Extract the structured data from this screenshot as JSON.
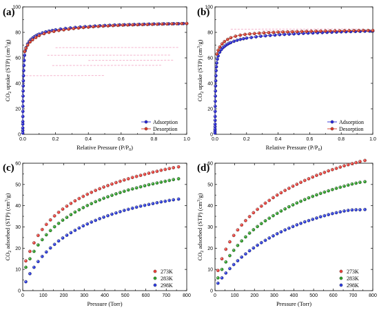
{
  "colors": {
    "adsorption": "#2727d6",
    "desorption": "#d43a2a",
    "t273": "#e8403a",
    "t283": "#2fa02a",
    "t298": "#2b3bdc",
    "pink_band": "#f4b3cc"
  },
  "chart_data": [
    {
      "panel": "(a)",
      "type": "scatter",
      "xlabel": "Relative Pressure (P/P0)",
      "ylabel": "CO2 uptake (STP) (cm3/g)",
      "xlim": [
        0.0,
        1.0
      ],
      "ylim": [
        0,
        100
      ],
      "xticks": [
        0.0,
        0.2,
        0.4,
        0.6,
        0.8,
        1.0
      ],
      "yticks": [
        0,
        20,
        40,
        60,
        80,
        100
      ],
      "legend_position": "bottom-right",
      "series": [
        {
          "name": "Adsorption",
          "color": "#2727d6",
          "x": [
            0.0001,
            0.0002,
            0.0003,
            0.0004,
            0.0005,
            0.0007,
            0.0009,
            0.0012,
            0.0015,
            0.0019,
            0.0024,
            0.003,
            0.0037,
            0.0046,
            0.0056,
            0.007,
            0.0087,
            0.011,
            0.015,
            0.02,
            0.03,
            0.04,
            0.05,
            0.06,
            0.07,
            0.08,
            0.09,
            0.1,
            0.12,
            0.14,
            0.16,
            0.18,
            0.2,
            0.23,
            0.26,
            0.29,
            0.32,
            0.35,
            0.38,
            0.41,
            0.44,
            0.47,
            0.5,
            0.53,
            0.56,
            0.59,
            0.62,
            0.65,
            0.68,
            0.71,
            0.74,
            0.77,
            0.8,
            0.83,
            0.86,
            0.89,
            0.92,
            0.95,
            0.98,
            1.0
          ],
          "y": [
            1,
            3,
            5,
            8,
            10,
            14,
            18,
            22,
            26,
            30,
            34,
            38,
            42,
            46,
            50,
            54,
            58,
            62,
            65.5,
            68,
            71,
            73,
            74.5,
            75.5,
            76.5,
            77.3,
            78,
            78.6,
            79.6,
            80.4,
            81,
            81.5,
            82,
            82.6,
            83.1,
            83.5,
            83.9,
            84.2,
            84.5,
            84.7,
            85,
            85.2,
            85.4,
            85.6,
            85.8,
            85.9,
            86,
            86.1,
            86.2,
            86.3,
            86.4,
            86.5,
            86.6,
            86.6,
            86.7,
            86.7,
            86.8,
            86.8,
            86.9,
            86.9
          ]
        },
        {
          "name": "Desorption",
          "color": "#d43a2a",
          "x": [
            1.0,
            0.97,
            0.94,
            0.91,
            0.88,
            0.85,
            0.82,
            0.79,
            0.76,
            0.73,
            0.7,
            0.67,
            0.64,
            0.61,
            0.58,
            0.55,
            0.52,
            0.49,
            0.46,
            0.43,
            0.4,
            0.37,
            0.34,
            0.31,
            0.28,
            0.25,
            0.22,
            0.19,
            0.16,
            0.13,
            0.1,
            0.08,
            0.06,
            0.045,
            0.03,
            0.02,
            0.012
          ],
          "y": [
            87,
            86.9,
            86.8,
            86.7,
            86.6,
            86.5,
            86.4,
            86.3,
            86.2,
            86.1,
            86,
            85.9,
            85.8,
            85.7,
            85.5,
            85.3,
            85.1,
            84.9,
            84.7,
            84.4,
            84.1,
            83.8,
            83.4,
            83,
            82.5,
            82,
            81.5,
            80.8,
            80,
            79,
            77.5,
            76,
            74.2,
            72.5,
            70,
            67.5,
            65
          ]
        }
      ]
    },
    {
      "panel": "(b)",
      "type": "scatter",
      "xlabel": "Relative Pressure (P/P0)",
      "ylabel": "CO2 uptake (STP) (cm3/g)",
      "xlim": [
        0.0,
        1.0
      ],
      "ylim": [
        0,
        100
      ],
      "xticks": [
        0.0,
        0.2,
        0.4,
        0.6,
        0.8,
        1.0
      ],
      "yticks": [
        0,
        20,
        40,
        60,
        80,
        100
      ],
      "legend_position": "bottom-right",
      "series": [
        {
          "name": "Adsorption",
          "color": "#2727d6",
          "x": [
            0.0001,
            0.0002,
            0.0003,
            0.0004,
            0.0005,
            0.0007,
            0.0009,
            0.0012,
            0.0015,
            0.0019,
            0.0024,
            0.003,
            0.0037,
            0.0046,
            0.0056,
            0.007,
            0.0087,
            0.011,
            0.015,
            0.02,
            0.03,
            0.04,
            0.05,
            0.06,
            0.07,
            0.08,
            0.09,
            0.1,
            0.12,
            0.14,
            0.16,
            0.18,
            0.2,
            0.23,
            0.26,
            0.29,
            0.32,
            0.35,
            0.38,
            0.41,
            0.44,
            0.47,
            0.5,
            0.53,
            0.56,
            0.59,
            0.62,
            0.65,
            0.68,
            0.71,
            0.74,
            0.77,
            0.8,
            0.83,
            0.86,
            0.89,
            0.92,
            0.95,
            0.98,
            1.0
          ],
          "y": [
            1,
            2.5,
            4,
            6,
            8,
            11,
            14,
            18,
            22,
            26,
            30,
            34,
            38,
            42,
            46,
            50,
            53,
            56,
            59,
            61.5,
            64.5,
            66.5,
            68,
            69,
            70,
            70.8,
            71.5,
            72,
            73,
            73.8,
            74.5,
            75,
            75.5,
            76,
            76.5,
            77,
            77.3,
            77.6,
            77.9,
            78.2,
            78.4,
            78.6,
            78.8,
            79,
            79.2,
            79.4,
            79.5,
            79.7,
            79.8,
            80,
            80.1,
            80.2,
            80.4,
            80.5,
            80.6,
            80.7,
            80.8,
            80.9,
            81,
            81
          ]
        },
        {
          "name": "Desorption",
          "color": "#d43a2a",
          "x": [
            1.0,
            0.97,
            0.94,
            0.91,
            0.88,
            0.85,
            0.82,
            0.79,
            0.76,
            0.73,
            0.7,
            0.67,
            0.64,
            0.61,
            0.58,
            0.55,
            0.52,
            0.49,
            0.46,
            0.43,
            0.4,
            0.37,
            0.34,
            0.31,
            0.28,
            0.25,
            0.22,
            0.19,
            0.16,
            0.13,
            0.1,
            0.08,
            0.06,
            0.045,
            0.03,
            0.02,
            0.012
          ],
          "y": [
            81.5,
            81.5,
            81.5,
            81.4,
            81.4,
            81.3,
            81.3,
            81.2,
            81.2,
            81.1,
            81.1,
            81,
            81,
            80.9,
            80.8,
            80.7,
            80.6,
            80.5,
            80.4,
            80.3,
            80.2,
            80,
            79.8,
            79.6,
            79.4,
            79.1,
            78.8,
            78.4,
            77.8,
            77,
            75.8,
            74.5,
            72.8,
            71,
            68.5,
            66,
            63
          ]
        }
      ]
    },
    {
      "panel": "(c)",
      "type": "scatter",
      "xlabel": "Pressure (Torr)",
      "ylabel": "CO2 adsorbed (STP) (cm3/g)",
      "xlim": [
        0,
        800
      ],
      "ylim": [
        0,
        60
      ],
      "xticks": [
        0,
        100,
        200,
        300,
        400,
        500,
        600,
        700,
        800
      ],
      "yticks": [
        0,
        10,
        20,
        30,
        40,
        50,
        60
      ],
      "legend_position": "bottom-right",
      "series": [
        {
          "name": "273K",
          "color": "#e8403a",
          "x": [
            15,
            35,
            55,
            75,
            95,
            115,
            135,
            155,
            175,
            195,
            215,
            235,
            255,
            275,
            295,
            315,
            335,
            355,
            375,
            395,
            415,
            435,
            455,
            475,
            495,
            515,
            535,
            555,
            575,
            595,
            615,
            635,
            655,
            675,
            695,
            715,
            735,
            760
          ],
          "y": [
            14,
            18.5,
            22.5,
            26,
            28.8,
            31.2,
            33.3,
            35.2,
            36.9,
            38.4,
            39.8,
            41.1,
            42.3,
            43.4,
            44.4,
            45.4,
            46.3,
            47.2,
            48,
            48.8,
            49.5,
            50.2,
            50.9,
            51.5,
            52.1,
            52.7,
            53.3,
            53.8,
            54.3,
            54.8,
            55.3,
            55.8,
            56.2,
            56.7,
            57.1,
            57.5,
            57.9,
            58.3
          ]
        },
        {
          "name": "283K",
          "color": "#2fa02a",
          "x": [
            15,
            35,
            55,
            75,
            95,
            115,
            135,
            155,
            175,
            195,
            215,
            235,
            255,
            275,
            295,
            315,
            335,
            355,
            375,
            395,
            415,
            435,
            455,
            475,
            495,
            515,
            535,
            555,
            575,
            595,
            615,
            635,
            655,
            675,
            695,
            715,
            735,
            760
          ],
          "y": [
            11,
            15,
            18.5,
            21.5,
            24,
            26.3,
            28.3,
            30.1,
            31.7,
            33.2,
            34.5,
            35.8,
            37,
            38.1,
            39.1,
            40.1,
            41,
            41.9,
            42.7,
            43.5,
            44.2,
            44.9,
            45.6,
            46.2,
            46.8,
            47.4,
            47.9,
            48.4,
            48.9,
            49.4,
            49.9,
            50.3,
            50.7,
            51.1,
            51.5,
            51.9,
            52.3,
            52.7
          ]
        },
        {
          "name": "298K",
          "color": "#2b3bdc",
          "x": [
            15,
            35,
            55,
            75,
            95,
            115,
            135,
            155,
            175,
            195,
            215,
            235,
            255,
            275,
            295,
            315,
            335,
            355,
            375,
            395,
            415,
            435,
            455,
            475,
            495,
            515,
            535,
            555,
            575,
            595,
            615,
            635,
            655,
            675,
            695,
            715,
            735,
            760
          ],
          "y": [
            4.2,
            8,
            11,
            13.7,
            16.1,
            18.2,
            20.1,
            21.8,
            23.4,
            24.8,
            26.1,
            27.3,
            28.4,
            29.5,
            30.5,
            31.4,
            32.3,
            33.1,
            33.9,
            34.6,
            35.3,
            36,
            36.6,
            37.2,
            37.8,
            38.3,
            38.8,
            39.3,
            39.8,
            40.2,
            40.6,
            41,
            41.4,
            41.8,
            42.1,
            42.5,
            42.8,
            43.1
          ]
        }
      ]
    },
    {
      "panel": "(d)",
      "type": "scatter",
      "xlabel": "Pressure (Torr)",
      "ylabel": "CO2 adsorbed (STP) (cm3/g)",
      "xlim": [
        0,
        800
      ],
      "ylim": [
        0,
        60
      ],
      "xticks": [
        0,
        100,
        200,
        300,
        400,
        500,
        600,
        700,
        800
      ],
      "yticks": [
        0,
        10,
        20,
        30,
        40,
        50,
        60
      ],
      "legend_position": "bottom-right",
      "series": [
        {
          "name": "273K",
          "color": "#e8403a",
          "x": [
            15,
            35,
            55,
            75,
            95,
            115,
            135,
            155,
            175,
            195,
            215,
            235,
            255,
            275,
            295,
            315,
            335,
            355,
            375,
            395,
            415,
            435,
            455,
            475,
            495,
            515,
            535,
            555,
            575,
            595,
            615,
            635,
            655,
            675,
            695,
            715,
            735,
            760
          ],
          "y": [
            9.5,
            15,
            19.5,
            23,
            26,
            28.6,
            30.9,
            33,
            34.9,
            36.7,
            38.3,
            39.8,
            41.2,
            42.5,
            43.8,
            45,
            46.1,
            47.2,
            48.2,
            49.2,
            50.1,
            51,
            51.9,
            52.7,
            53.5,
            54.3,
            55,
            55.7,
            56.4,
            57,
            57.6,
            58.2,
            58.8,
            59.3,
            59.8,
            60.3,
            60.8,
            61.3
          ]
        },
        {
          "name": "283K",
          "color": "#2fa02a",
          "x": [
            15,
            35,
            55,
            75,
            95,
            115,
            135,
            155,
            175,
            195,
            215,
            235,
            255,
            275,
            295,
            315,
            335,
            355,
            375,
            395,
            415,
            435,
            455,
            475,
            495,
            515,
            535,
            555,
            575,
            595,
            615,
            635,
            655,
            675,
            695,
            715,
            735,
            760
          ],
          "y": [
            6,
            10,
            13.5,
            16.5,
            19,
            21.3,
            23.4,
            25.3,
            27.1,
            28.7,
            30.2,
            31.6,
            32.9,
            34.1,
            35.3,
            36.4,
            37.5,
            38.5,
            39.5,
            40.4,
            41.3,
            42.1,
            42.9,
            43.7,
            44.4,
            45.1,
            45.8,
            46.4,
            47,
            47.6,
            48.2,
            48.7,
            49.2,
            49.7,
            50.2,
            50.6,
            51,
            51.3
          ]
        },
        {
          "name": "298K",
          "color": "#2b3bdc",
          "x": [
            15,
            35,
            55,
            75,
            95,
            115,
            135,
            155,
            175,
            195,
            215,
            235,
            255,
            275,
            295,
            315,
            335,
            355,
            375,
            395,
            415,
            435,
            455,
            475,
            495,
            515,
            535,
            555,
            575,
            595,
            615,
            635,
            655,
            675,
            695,
            715,
            735,
            760
          ],
          "y": [
            3.5,
            6,
            8.3,
            10.4,
            12.3,
            14.1,
            15.8,
            17.3,
            18.8,
            20.1,
            21.4,
            22.6,
            23.7,
            24.8,
            25.8,
            26.8,
            27.7,
            28.6,
            29.4,
            30.2,
            31,
            31.7,
            32.4,
            33,
            33.6,
            34.2,
            34.8,
            35.3,
            35.8,
            36.3,
            36.7,
            37.1,
            37.5,
            37.8,
            38,
            38.1,
            38.1,
            38.2
          ]
        }
      ]
    }
  ]
}
